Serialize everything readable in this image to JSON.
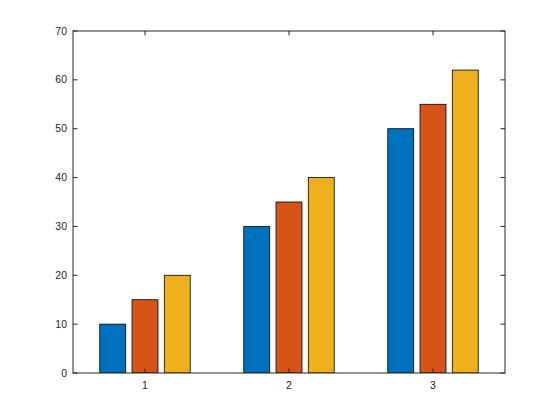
{
  "chart_data": {
    "type": "bar",
    "categories": [
      "1",
      "2",
      "3"
    ],
    "series": [
      {
        "color": "#0072bd",
        "values": [
          10,
          30,
          50
        ]
      },
      {
        "color": "#d95319",
        "values": [
          15,
          35,
          55
        ]
      },
      {
        "color": "#edb120",
        "values": [
          20,
          40,
          62
        ]
      }
    ],
    "ylim": [
      0,
      70
    ],
    "yticks": [
      0,
      10,
      20,
      30,
      40,
      50,
      60,
      70
    ],
    "grid": false
  }
}
